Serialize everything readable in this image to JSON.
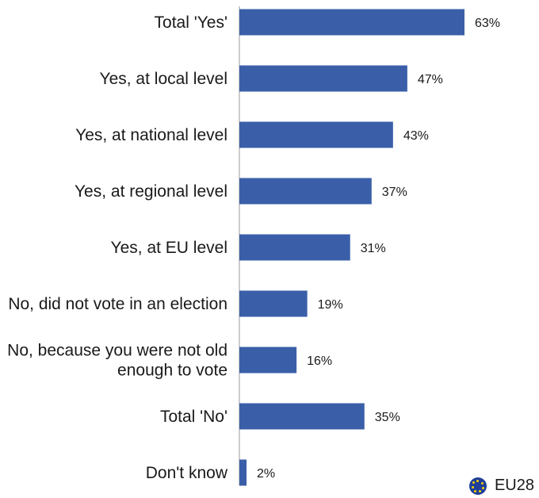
{
  "chart_data": {
    "type": "bar",
    "orientation": "horizontal",
    "categories": [
      "Total 'Yes'",
      "Yes, at local level",
      "Yes, at national level",
      "Yes, at regional level",
      "Yes, at EU level",
      "No, did not vote in an election",
      "No, because you were not old enough to vote",
      "Total 'No'",
      "Don't know"
    ],
    "values": [
      63,
      47,
      43,
      37,
      31,
      19,
      16,
      35,
      2
    ],
    "value_labels": [
      "63%",
      "47%",
      "43%",
      "37%",
      "31%",
      "19%",
      "16%",
      "35%",
      "2%"
    ],
    "series": [
      {
        "name": "EU28",
        "values": [
          63,
          47,
          43,
          37,
          31,
          19,
          16,
          35,
          2
        ]
      }
    ],
    "xlim": [
      0,
      100
    ],
    "grid": false,
    "legend_position": "bottom-right",
    "bar_color": "#3a5fa8"
  },
  "legend": {
    "label": "EU28",
    "icon": "eu-flag-icon"
  }
}
